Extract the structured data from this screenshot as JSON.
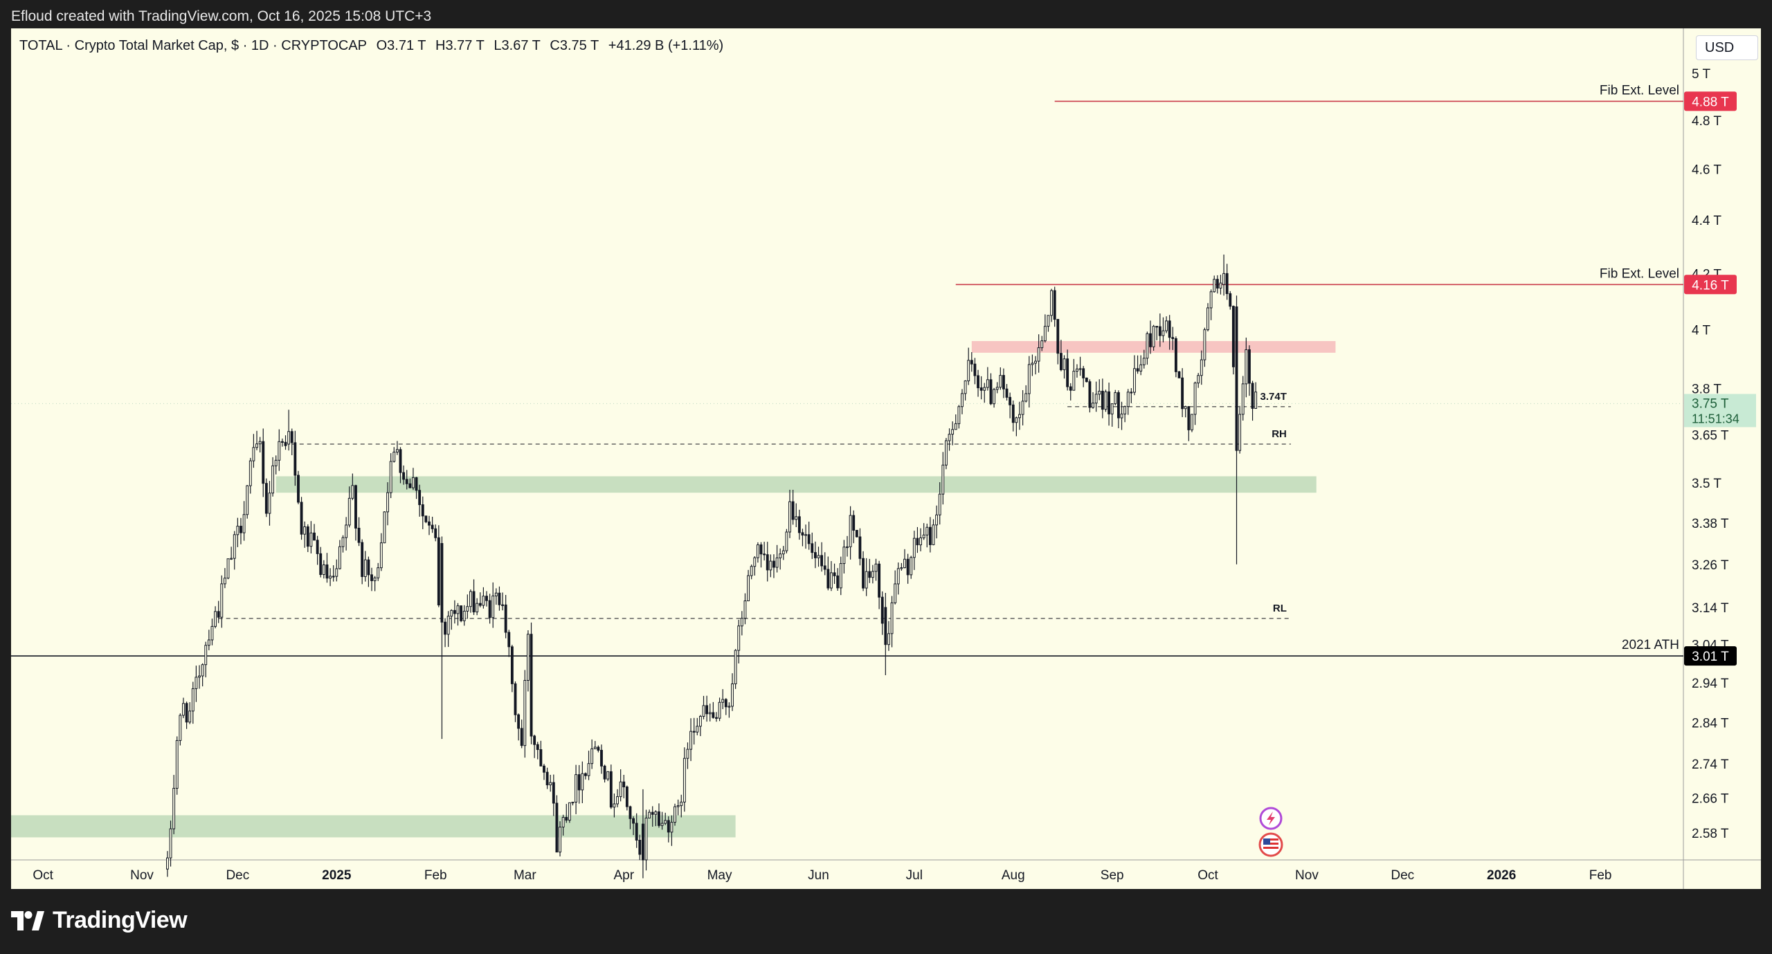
{
  "caption": "Efloud created with TradingView.com, Oct 16, 2025 15:08 UTC+3",
  "brand": {
    "name": "TradingView",
    "logo_icon": "tradingview-logo-icon"
  },
  "legend": {
    "symbol": "TOTAL · Crypto Total Market Cap, $ · 1D · CRYPTOCAP",
    "open": "O3.71 T",
    "high": "H3.77 T",
    "low": "L3.67 T",
    "close": "C3.75 T",
    "change": "+41.29 B (+1.11%)"
  },
  "currency_button": "USD",
  "colors": {
    "background": "#fdfde8",
    "frame": "#1e1e1e",
    "candle": "#131722",
    "fib_line": "#c93a4a",
    "fib_badge": "#e8364f",
    "zone_green": "#c8dfc0",
    "zone_red": "#f7c5c2",
    "ath_badge": "#000000",
    "current_badge": "#c8ead4"
  },
  "icons": [
    "lightning-icon",
    "us-flag-icon"
  ],
  "chart_data": {
    "type": "candlestick",
    "title": "",
    "xlabel": "",
    "ylabel": "",
    "y_scale": "log",
    "ylim": [
      2.52,
      5.2
    ],
    "x_range": [
      "2024-09-21",
      "2026-02-27"
    ],
    "x_ticks": [
      {
        "date": "2024-10-01",
        "label": "Oct",
        "bold": false
      },
      {
        "date": "2024-11-01",
        "label": "Nov",
        "bold": false
      },
      {
        "date": "2024-12-01",
        "label": "Dec",
        "bold": false
      },
      {
        "date": "2025-01-01",
        "label": "2025",
        "bold": true
      },
      {
        "date": "2025-02-01",
        "label": "Feb",
        "bold": false
      },
      {
        "date": "2025-03-01",
        "label": "Mar",
        "bold": false
      },
      {
        "date": "2025-04-01",
        "label": "Apr",
        "bold": false
      },
      {
        "date": "2025-05-01",
        "label": "May",
        "bold": false
      },
      {
        "date": "2025-06-01",
        "label": "Jun",
        "bold": false
      },
      {
        "date": "2025-07-01",
        "label": "Jul",
        "bold": false
      },
      {
        "date": "2025-08-01",
        "label": "Aug",
        "bold": false
      },
      {
        "date": "2025-09-01",
        "label": "Sep",
        "bold": false
      },
      {
        "date": "2025-10-01",
        "label": "Oct",
        "bold": false
      },
      {
        "date": "2025-11-01",
        "label": "Nov",
        "bold": false
      },
      {
        "date": "2025-12-01",
        "label": "Dec",
        "bold": false
      },
      {
        "date": "2026-01-01",
        "label": "2026",
        "bold": true
      },
      {
        "date": "2026-02-01",
        "label": "Feb",
        "bold": false
      }
    ],
    "y_ticks": [
      {
        "value": 5.0,
        "label": "5 T"
      },
      {
        "value": 4.8,
        "label": "4.8 T"
      },
      {
        "value": 4.6,
        "label": "4.6 T"
      },
      {
        "value": 4.4,
        "label": "4.4 T"
      },
      {
        "value": 4.2,
        "label": "4.2 T"
      },
      {
        "value": 4.0,
        "label": "4 T"
      },
      {
        "value": 3.8,
        "label": "3.8 T"
      },
      {
        "value": 3.65,
        "label": "3.65 T"
      },
      {
        "value": 3.5,
        "label": "3.5 T"
      },
      {
        "value": 3.38,
        "label": "3.38 T"
      },
      {
        "value": 3.26,
        "label": "3.26 T"
      },
      {
        "value": 3.14,
        "label": "3.14 T"
      },
      {
        "value": 3.04,
        "label": "3.04 T"
      },
      {
        "value": 2.94,
        "label": "2.94 T"
      },
      {
        "value": 2.84,
        "label": "2.84 T"
      },
      {
        "value": 2.74,
        "label": "2.74 T"
      },
      {
        "value": 2.66,
        "label": "2.66 T"
      },
      {
        "value": 2.58,
        "label": "2.58 T"
      }
    ],
    "series": [
      {
        "kind": "close_path",
        "points": [
          [
            "2024-11-09",
            2.5
          ],
          [
            "2024-11-12",
            2.8
          ],
          [
            "2024-11-14",
            2.88
          ],
          [
            "2024-11-16",
            2.86
          ],
          [
            "2024-11-19",
            2.97
          ],
          [
            "2024-11-22",
            3.08
          ],
          [
            "2024-11-25",
            3.14
          ],
          [
            "2024-11-28",
            3.25
          ],
          [
            "2024-12-02",
            3.38
          ],
          [
            "2024-12-05",
            3.55
          ],
          [
            "2024-12-08",
            3.62
          ],
          [
            "2024-12-10",
            3.42
          ],
          [
            "2024-12-13",
            3.6
          ],
          [
            "2024-12-16",
            3.64
          ],
          [
            "2024-12-17",
            3.72
          ],
          [
            "2024-12-19",
            3.5
          ],
          [
            "2024-12-21",
            3.36
          ],
          [
            "2024-12-25",
            3.3
          ],
          [
            "2024-12-28",
            3.23
          ],
          [
            "2024-12-31",
            3.2
          ],
          [
            "2025-01-03",
            3.32
          ],
          [
            "2025-01-06",
            3.48
          ],
          [
            "2025-01-09",
            3.25
          ],
          [
            "2025-01-13",
            3.2
          ],
          [
            "2025-01-17",
            3.5
          ],
          [
            "2025-01-20",
            3.62
          ],
          [
            "2025-01-22",
            3.52
          ],
          [
            "2025-01-26",
            3.5
          ],
          [
            "2025-01-28",
            3.4
          ],
          [
            "2025-02-01",
            3.32
          ],
          [
            "2025-02-03",
            3.0
          ],
          [
            "2025-02-05",
            3.14
          ],
          [
            "2025-02-09",
            3.12
          ],
          [
            "2025-02-13",
            3.16
          ],
          [
            "2025-02-18",
            3.14
          ],
          [
            "2025-02-22",
            3.18
          ],
          [
            "2025-02-25",
            2.92
          ],
          [
            "2025-02-28",
            2.78
          ],
          [
            "2025-03-02",
            3.08
          ],
          [
            "2025-03-03",
            2.82
          ],
          [
            "2025-03-06",
            2.76
          ],
          [
            "2025-03-09",
            2.7
          ],
          [
            "2025-03-11",
            2.56
          ],
          [
            "2025-03-15",
            2.66
          ],
          [
            "2025-03-19",
            2.72
          ],
          [
            "2025-03-24",
            2.8
          ],
          [
            "2025-03-28",
            2.66
          ],
          [
            "2025-04-01",
            2.68
          ],
          [
            "2025-04-06",
            2.52
          ],
          [
            "2025-04-09",
            2.64
          ],
          [
            "2025-04-13",
            2.6
          ],
          [
            "2025-04-18",
            2.62
          ],
          [
            "2025-04-22",
            2.84
          ],
          [
            "2025-04-26",
            2.86
          ],
          [
            "2025-04-30",
            2.85
          ],
          [
            "2025-05-04",
            2.9
          ],
          [
            "2025-05-08",
            3.12
          ],
          [
            "2025-05-12",
            3.3
          ],
          [
            "2025-05-16",
            3.24
          ],
          [
            "2025-05-20",
            3.28
          ],
          [
            "2025-05-23",
            3.44
          ],
          [
            "2025-05-27",
            3.36
          ],
          [
            "2025-05-31",
            3.26
          ],
          [
            "2025-06-04",
            3.22
          ],
          [
            "2025-06-07",
            3.18
          ],
          [
            "2025-06-11",
            3.4
          ],
          [
            "2025-06-15",
            3.22
          ],
          [
            "2025-06-19",
            3.24
          ],
          [
            "2025-06-22",
            3.04
          ],
          [
            "2025-06-25",
            3.22
          ],
          [
            "2025-06-29",
            3.26
          ],
          [
            "2025-07-03",
            3.34
          ],
          [
            "2025-07-07",
            3.35
          ],
          [
            "2025-07-10",
            3.55
          ],
          [
            "2025-07-14",
            3.72
          ],
          [
            "2025-07-18",
            3.86
          ],
          [
            "2025-07-22",
            3.82
          ],
          [
            "2025-07-25",
            3.78
          ],
          [
            "2025-07-28",
            3.86
          ],
          [
            "2025-08-01",
            3.66
          ],
          [
            "2025-08-03",
            3.7
          ],
          [
            "2025-08-06",
            3.84
          ],
          [
            "2025-08-10",
            3.98
          ],
          [
            "2025-08-13",
            4.12
          ],
          [
            "2025-08-15",
            3.92
          ],
          [
            "2025-08-19",
            3.82
          ],
          [
            "2025-08-22",
            3.86
          ],
          [
            "2025-08-26",
            3.74
          ],
          [
            "2025-08-30",
            3.76
          ],
          [
            "2025-09-03",
            3.74
          ],
          [
            "2025-09-07",
            3.8
          ],
          [
            "2025-09-11",
            3.92
          ],
          [
            "2025-09-14",
            4.0
          ],
          [
            "2025-09-17",
            4.02
          ],
          [
            "2025-09-20",
            3.96
          ],
          [
            "2025-09-22",
            3.8
          ],
          [
            "2025-09-25",
            3.68
          ],
          [
            "2025-09-28",
            3.84
          ],
          [
            "2025-10-02",
            4.12
          ],
          [
            "2025-10-05",
            4.2
          ],
          [
            "2025-10-08",
            4.12
          ],
          [
            "2025-10-10",
            3.6
          ],
          [
            "2025-10-11",
            3.68
          ],
          [
            "2025-10-13",
            3.9
          ],
          [
            "2025-10-15",
            3.72
          ],
          [
            "2025-10-16",
            3.75
          ]
        ]
      }
    ],
    "candle_overrides": [
      {
        "date": "2025-10-10",
        "open": 4.08,
        "high": 4.12,
        "low": 3.26,
        "close": 3.6
      },
      {
        "date": "2025-10-06",
        "open": 4.16,
        "high": 4.27,
        "low": 4.12,
        "close": 4.2
      },
      {
        "date": "2025-04-07",
        "open": 2.6,
        "high": 2.68,
        "low": 2.48,
        "close": 2.52
      },
      {
        "date": "2025-02-03",
        "open": 3.32,
        "high": 3.34,
        "low": 2.8,
        "close": 3.1
      },
      {
        "date": "2025-06-22",
        "open": 3.14,
        "high": 3.18,
        "low": 2.96,
        "close": 3.04
      },
      {
        "date": "2024-12-17",
        "open": 3.62,
        "high": 3.73,
        "low": 3.6,
        "close": 3.66
      }
    ],
    "zones": [
      {
        "name": "green-zone-bottom",
        "color": "#c8dfc0",
        "y_low": 2.57,
        "y_high": 2.62,
        "x_start": "2024-09-21",
        "x_end": "2025-05-06"
      },
      {
        "name": "green-zone-mid",
        "color": "#c8dfc0",
        "y_low": 3.47,
        "y_high": 3.52,
        "x_start": "2024-12-13",
        "x_end": "2025-11-04"
      },
      {
        "name": "red-zone-top",
        "color": "#f7c5c2",
        "y_low": 3.92,
        "y_high": 3.96,
        "x_start": "2025-07-19",
        "x_end": "2025-11-10"
      }
    ],
    "horizontal_lines": [
      {
        "name": "ath-line",
        "value": 3.01,
        "style": "solid",
        "color": "#131722",
        "x_start": "2024-09-21",
        "x_end": "2026-02-27",
        "label": "2021 ATH",
        "badge": "3.01 T"
      },
      {
        "name": "fib-line-upper",
        "value": 4.88,
        "style": "solid",
        "color": "#c93a4a",
        "x_start": "2025-08-14",
        "x_end": "2026-02-27",
        "label": "Fib Ext. Level",
        "badge": "4.88 T"
      },
      {
        "name": "fib-line-lower",
        "value": 4.16,
        "style": "solid",
        "color": "#c93a4a",
        "x_start": "2025-07-14",
        "x_end": "2026-02-27",
        "label": "Fib Ext. Level",
        "badge": "4.16 T"
      },
      {
        "name": "rh-line",
        "value": 3.62,
        "style": "dashed",
        "color": "#555555",
        "x_start": "2024-12-18",
        "x_end": "2025-10-27",
        "label": "RH"
      },
      {
        "name": "rl-line",
        "value": 3.11,
        "style": "dashed",
        "color": "#555555",
        "x_start": "2024-11-25",
        "x_end": "2025-10-27",
        "label": "RL"
      },
      {
        "name": "level-374-line",
        "value": 3.74,
        "style": "dashed",
        "color": "#555555",
        "x_start": "2025-08-18",
        "x_end": "2025-10-27",
        "label": "3.74T"
      }
    ],
    "current_price": {
      "value": 3.75,
      "label": "3.75 T",
      "countdown": "11:51:34"
    }
  }
}
